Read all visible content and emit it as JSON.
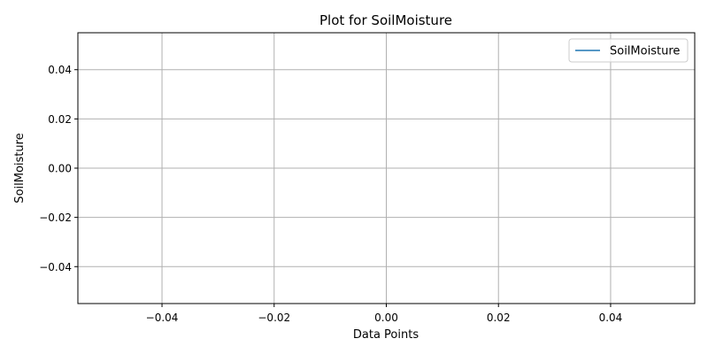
{
  "chart_data": {
    "type": "line",
    "title": "Plot for SoilMoisture",
    "xlabel": "Data Points",
    "ylabel": "SoilMoisture",
    "xlim": [
      -0.055,
      0.055
    ],
    "ylim": [
      -0.055,
      0.055
    ],
    "x_ticks": [
      -0.04,
      -0.02,
      0.0,
      0.02,
      0.04
    ],
    "x_tick_labels": [
      "−0.04",
      "−0.02",
      "0.00",
      "0.02",
      "0.04"
    ],
    "y_ticks": [
      0.04,
      0.02,
      0.0,
      -0.02,
      -0.04
    ],
    "y_tick_labels": [
      "0.04",
      "0.02",
      "0.00",
      "−0.02",
      "−0.04"
    ],
    "grid": true,
    "legend_position": "top-right",
    "series": [
      {
        "name": "SoilMoisture",
        "color": "#1f77b4",
        "x": [],
        "y": []
      }
    ],
    "colors": {
      "grid": "#b0b0b0",
      "axis": "#000000",
      "background": "#ffffff"
    }
  }
}
